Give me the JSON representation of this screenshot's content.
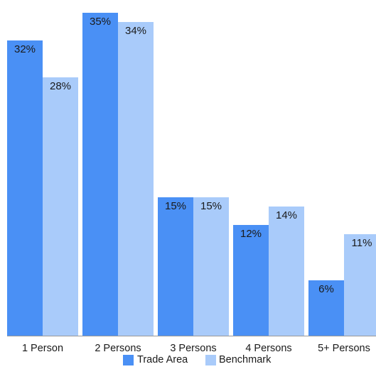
{
  "chart_data": {
    "type": "bar",
    "title": "",
    "xlabel": "",
    "ylabel": "",
    "categories": [
      "1 Person",
      "2 Persons",
      "3 Persons",
      "4 Persons",
      "5+ Persons"
    ],
    "series": [
      {
        "name": "Trade Area",
        "values": [
          32,
          35,
          15,
          12,
          6
        ],
        "labels": [
          "32%",
          "35%",
          "15%",
          "12%",
          "6%"
        ],
        "color": "#4a90f5"
      },
      {
        "name": "Benchmark",
        "values": [
          28,
          34,
          15,
          14,
          11
        ],
        "labels": [
          "28%",
          "34%",
          "15%",
          "14%",
          "11%"
        ],
        "color": "#a9cbfa"
      }
    ],
    "ylim": [
      0,
      35
    ],
    "y_axis_visible": false,
    "grid": false,
    "legend_position": "bottom-center"
  }
}
